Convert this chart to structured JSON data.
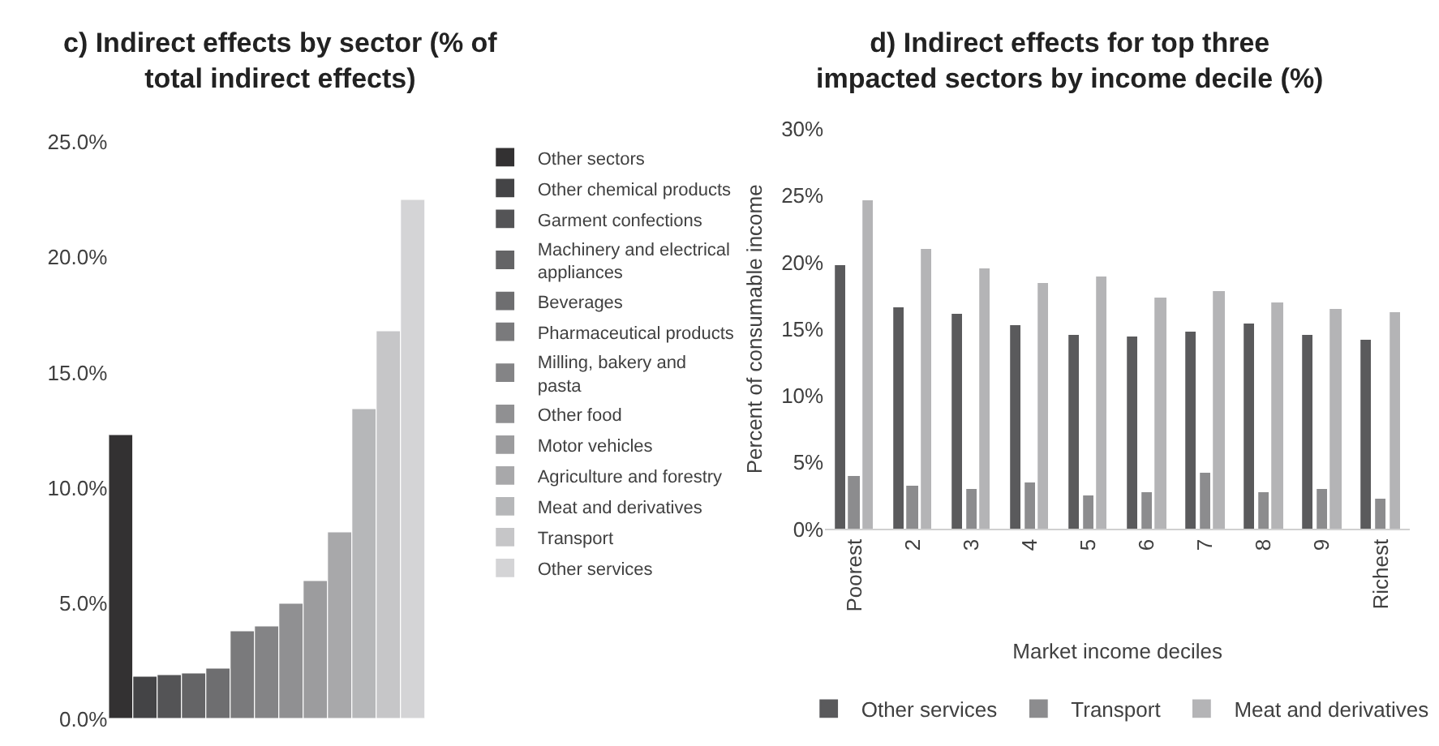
{
  "chart_data": [
    {
      "type": "bar",
      "title": "c) Indirect effects by sector (% of total indirect effects)",
      "categories": [
        null
      ],
      "series": [
        {
          "name": "Other sectors",
          "color": "#333132",
          "values": [
            12.3
          ]
        },
        {
          "name": "Other chemical products",
          "color": "#444446",
          "values": [
            1.8
          ]
        },
        {
          "name": "Garment confections",
          "color": "#545456",
          "values": [
            1.9
          ]
        },
        {
          "name": "Machinery and electrical appliances",
          "color": "#646466",
          "values": [
            2.0
          ]
        },
        {
          "name": "Beverages",
          "color": "#6e6e70",
          "values": [
            2.2
          ]
        },
        {
          "name": "Pharmaceutical products",
          "color": "#7a7a7c",
          "values": [
            3.8
          ]
        },
        {
          "name": "Milling, bakery and pasta",
          "color": "#848486",
          "values": [
            4.0
          ]
        },
        {
          "name": "Other food",
          "color": "#909092",
          "values": [
            5.0
          ]
        },
        {
          "name": "Motor vehicles",
          "color": "#9c9c9e",
          "values": [
            6.0
          ]
        },
        {
          "name": "Agriculture and forestry",
          "color": "#a8a8aa",
          "values": [
            8.1
          ]
        },
        {
          "name": "Meat and derivatives",
          "color": "#b6b7b9",
          "values": [
            13.4
          ]
        },
        {
          "name": "Transport",
          "color": "#c6c6c8",
          "values": [
            16.8
          ]
        },
        {
          "name": "Other services",
          "color": "#d4d4d6",
          "values": [
            22.5
          ]
        }
      ],
      "ylim": [
        0,
        25
      ],
      "yticks": [
        {
          "value": 0,
          "label": "0.0%"
        },
        {
          "value": 5,
          "label": "5.0%"
        },
        {
          "value": 10,
          "label": "10.0%"
        },
        {
          "value": 15,
          "label": "15.0%"
        },
        {
          "value": 20,
          "label": "20.0%"
        },
        {
          "value": 25,
          "label": "25.0%"
        }
      ],
      "legend": "right",
      "grid": false
    },
    {
      "type": "bar",
      "title": "d) Indirect effects for top three impacted sectors by income decile (%)",
      "xlabel": "Market income deciles",
      "ylabel": "Percent of consumable income",
      "categories": [
        "Poorest",
        "2",
        "3",
        "4",
        "5",
        "6",
        "7",
        "8",
        "9",
        "Richest"
      ],
      "series": [
        {
          "name": "Other services",
          "color": "#5a5a5c",
          "values": [
            19.8,
            16.6,
            16.1,
            15.3,
            14.6,
            14.4,
            14.8,
            15.4,
            14.6,
            14.2
          ]
        },
        {
          "name": "Transport",
          "color": "#8c8c8e",
          "values": [
            4.0,
            3.3,
            3.0,
            3.5,
            2.5,
            2.8,
            4.2,
            2.8,
            3.0,
            2.3
          ]
        },
        {
          "name": "Meat and derivatives",
          "color": "#b4b4b6",
          "values": [
            24.7,
            21.0,
            19.6,
            18.5,
            18.9,
            17.3,
            17.9,
            17.0,
            16.5,
            16.2
          ]
        }
      ],
      "ylim": [
        0,
        30
      ],
      "yticks": [
        {
          "value": 0,
          "label": "0%"
        },
        {
          "value": 5,
          "label": "5%"
        },
        {
          "value": 10,
          "label": "10%"
        },
        {
          "value": 15,
          "label": "15%"
        },
        {
          "value": 20,
          "label": "20%"
        },
        {
          "value": 25,
          "label": "25%"
        },
        {
          "value": 30,
          "label": "30%"
        }
      ],
      "legend": "bottom",
      "grid": false
    }
  ]
}
